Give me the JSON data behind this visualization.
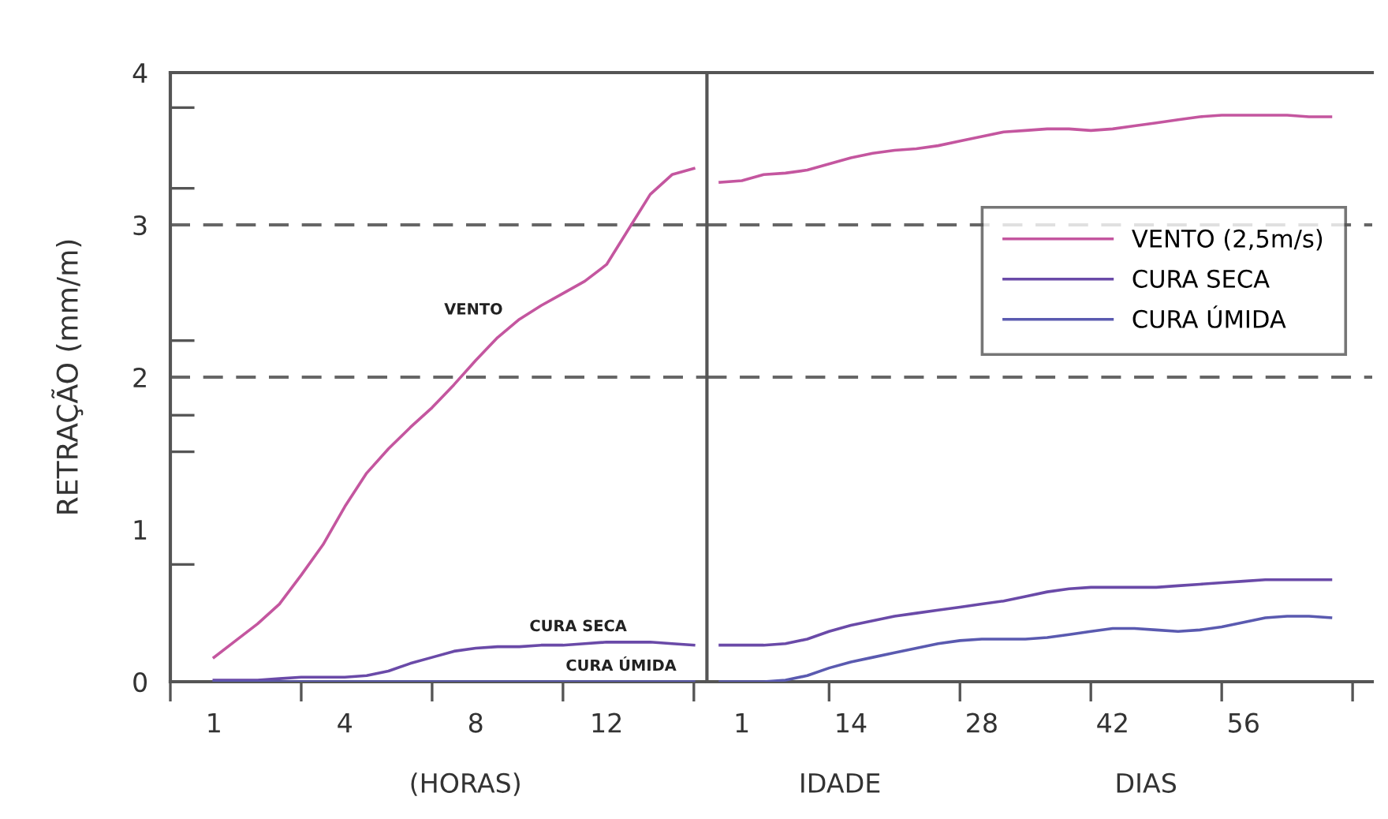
{
  "chart_data": [
    {
      "type": "line",
      "ylabel": "RETRAÇÃO (mm/m)",
      "ylim": [
        0,
        4
      ],
      "categories": [
        null,
        null,
        "1",
        null,
        null,
        null,
        null,
        null,
        "4",
        null,
        null,
        null,
        null,
        null,
        "8",
        null,
        null,
        null,
        null,
        null,
        "12",
        null,
        null,
        null,
        null
      ],
      "yticks": [
        0,
        1,
        2,
        3,
        4,
        {
          "value": 0.77,
          "label": null
        },
        {
          "value": 1.51,
          "label": null
        },
        {
          "value": 1.75,
          "label": null
        },
        {
          "value": 2.24,
          "label": null
        },
        {
          "value": 3.24,
          "label": null
        },
        {
          "value": 3.77,
          "label": null
        }
      ],
      "series": [
        {
          "color": "#c4569f",
          "values": [
            null,
            null,
            0.16,
            0.27,
            0.38,
            0.51,
            0.7,
            0.9,
            1.15,
            1.37,
            1.53,
            1.67,
            1.8,
            1.95,
            2.11,
            2.26,
            2.38,
            2.47,
            2.55,
            2.63,
            2.74,
            2.97,
            3.2,
            3.33,
            3.37
          ]
        },
        {
          "color": "#6a4aa8",
          "values": [
            null,
            null,
            0.01,
            0.01,
            0.01,
            0.02,
            0.03,
            0.03,
            0.03,
            0.04,
            0.07,
            0.12,
            0.16,
            0.2,
            0.22,
            0.23,
            0.23,
            0.24,
            0.24,
            0.25,
            0.26,
            0.26,
            0.26,
            0.25,
            0.24
          ]
        },
        {
          "color": "#5a5ab0",
          "values": [
            null,
            null,
            0,
            0,
            0,
            0,
            0,
            0,
            0,
            0,
            0,
            0,
            0,
            0,
            0,
            0,
            0,
            0,
            0,
            0,
            0,
            0,
            0,
            0,
            0
          ]
        }
      ],
      "ref_lines": [
        {
          "axis": "y",
          "value": 2,
          "color": "#666666",
          "line_style": "dashed"
        },
        {
          "axis": "y",
          "value": 3,
          "color": "#666666",
          "line_style": "dashed"
        }
      ],
      "annotations": [
        "VENTO",
        "CURA SECA",
        "CURA ÚMIDA",
        "(HORAS)"
      ],
      "grid": false,
      "marker": "none",
      "line_style": "solid"
    },
    {
      "type": "line",
      "ylim": [
        0,
        4
      ],
      "yticks": [
        0,
        1,
        2,
        3,
        4
      ],
      "tick_labels": "x",
      "categories": [
        null,
        "1",
        null,
        null,
        null,
        null,
        "14",
        null,
        null,
        null,
        null,
        null,
        "28",
        null,
        null,
        null,
        null,
        null,
        "42",
        null,
        null,
        null,
        null,
        null,
        "56",
        null,
        null,
        null,
        null,
        null,
        null
      ],
      "series": [
        {
          "name": "VENTO (2,5m/s)",
          "color": "#c4569f",
          "values": [
            3.28,
            3.29,
            3.33,
            3.34,
            3.36,
            3.4,
            3.44,
            3.47,
            3.49,
            3.5,
            3.52,
            3.55,
            3.58,
            3.61,
            3.62,
            3.63,
            3.63,
            3.62,
            3.63,
            3.65,
            3.67,
            3.69,
            3.71,
            3.72,
            3.72,
            3.72,
            3.72,
            3.71,
            3.71,
            null,
            null
          ]
        },
        {
          "name": "CURA SECA",
          "color": "#6a4aa8",
          "values": [
            0.24,
            0.24,
            0.24,
            0.25,
            0.28,
            0.33,
            0.37,
            0.4,
            0.43,
            0.45,
            0.47,
            0.49,
            0.51,
            0.53,
            0.56,
            0.59,
            0.61,
            0.62,
            0.62,
            0.62,
            0.62,
            0.63,
            0.64,
            0.65,
            0.66,
            0.67,
            0.67,
            0.67,
            0.67,
            null,
            null
          ]
        },
        {
          "name": "CURA ÚMIDA",
          "color": "#5a5ab0",
          "values": [
            0,
            0,
            0,
            0.01,
            0.04,
            0.09,
            0.13,
            0.16,
            0.19,
            0.22,
            0.25,
            0.27,
            0.28,
            0.28,
            0.28,
            0.29,
            0.31,
            0.33,
            0.35,
            0.35,
            0.34,
            0.33,
            0.34,
            0.36,
            0.39,
            0.42,
            0.43,
            0.43,
            0.42,
            null,
            null
          ]
        }
      ],
      "ref_lines": [
        {
          "axis": "y",
          "value": 2,
          "color": "#666666",
          "line_style": "dashed"
        },
        {
          "axis": "y",
          "value": 3,
          "color": "#666666",
          "line_style": "dashed"
        }
      ],
      "annotations": [
        "IDADE",
        "DIAS"
      ],
      "legend": "right",
      "grid": false,
      "marker": "none",
      "line_style": "solid"
    }
  ]
}
